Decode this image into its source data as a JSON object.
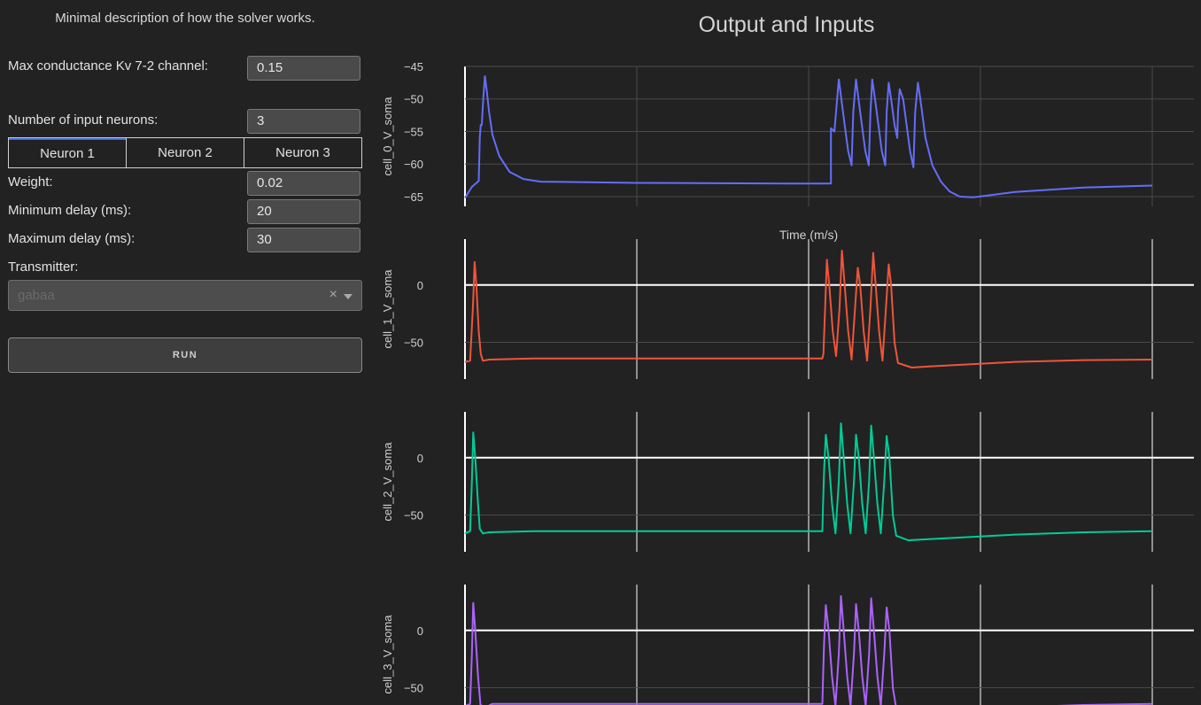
{
  "panel": {
    "description": "Minimal description of how the solver works.",
    "kv_label": "Max conductance Kv 7-2 channel:",
    "kv_value": "0.15",
    "num_label": "Number of input neurons:",
    "num_value": "3",
    "tabs": [
      "Neuron 1",
      "Neuron 2",
      "Neuron 3"
    ],
    "weight_label": "Weight:",
    "weight_value": "0.02",
    "min_delay_label": "Minimum delay (ms):",
    "min_delay_value": "20",
    "max_delay_label": "Maximum delay (ms):",
    "max_delay_value": "30",
    "transmitter_label": "Transmitter:",
    "transmitter_value": "gabaa",
    "run_label": "RUN"
  },
  "chart_data": {
    "type": "line",
    "title": "Output and Inputs",
    "xlabel": "Time (m/s)",
    "xlim": [
      0,
      200
    ],
    "x_gridlines": [
      0,
      50,
      100,
      150,
      200
    ],
    "colors": [
      "#636efa",
      "#ef553b",
      "#00cc96",
      "#ab63fa"
    ],
    "series": [
      {
        "name": "cell_0_V_soma",
        "ylim": [
          -66.5,
          -45
        ],
        "yticks": [
          -45,
          -50,
          -55,
          -60,
          -65
        ],
        "points": [
          [
            0,
            -65.2
          ],
          [
            2,
            -63.5
          ],
          [
            4,
            -62.6
          ],
          [
            4.3,
            -56
          ],
          [
            4.6,
            -54
          ],
          [
            4.9,
            -54
          ],
          [
            5.3,
            -50
          ],
          [
            5.8,
            -46.5
          ],
          [
            6.3,
            -48.5
          ],
          [
            7,
            -52
          ],
          [
            8,
            -55.5
          ],
          [
            10,
            -58.8
          ],
          [
            13,
            -61.2
          ],
          [
            17,
            -62.3
          ],
          [
            22,
            -62.7
          ],
          [
            50,
            -62.9
          ],
          [
            100,
            -63
          ],
          [
            106.5,
            -63
          ],
          [
            106.5,
            -54.5
          ],
          [
            107.5,
            -55
          ],
          [
            108.3,
            -50
          ],
          [
            108.8,
            -47
          ],
          [
            109.5,
            -50
          ],
          [
            110.5,
            -54
          ],
          [
            111.5,
            -58
          ],
          [
            112.5,
            -60.2
          ],
          [
            113,
            -52
          ],
          [
            113.8,
            -47
          ],
          [
            114.5,
            -50
          ],
          [
            115.5,
            -54
          ],
          [
            116.5,
            -58
          ],
          [
            117.5,
            -60.2
          ],
          [
            118,
            -52
          ],
          [
            118.5,
            -47
          ],
          [
            119.3,
            -50
          ],
          [
            120.3,
            -54
          ],
          [
            121.3,
            -58
          ],
          [
            122.3,
            -60.2
          ],
          [
            122.7,
            -52
          ],
          [
            123.3,
            -47.5
          ],
          [
            124,
            -50
          ],
          [
            125,
            -54
          ],
          [
            125.8,
            -56
          ],
          [
            126,
            -52
          ],
          [
            126.5,
            -48.5
          ],
          [
            127.5,
            -50
          ],
          [
            128.5,
            -54
          ],
          [
            129.5,
            -58
          ],
          [
            130.5,
            -60.5
          ],
          [
            131,
            -52
          ],
          [
            131.8,
            -47.5
          ],
          [
            132.5,
            -50
          ],
          [
            134,
            -56
          ],
          [
            136,
            -60.2
          ],
          [
            138.5,
            -62.7
          ],
          [
            141,
            -64.2
          ],
          [
            144,
            -65
          ],
          [
            148,
            -65.1
          ],
          [
            160,
            -64.3
          ],
          [
            180,
            -63.6
          ],
          [
            200,
            -63.3
          ]
        ]
      },
      {
        "name": "cell_1_V_soma",
        "ylim": [
          -82,
          40
        ],
        "yticks": [
          0,
          -50
        ],
        "points": [
          [
            0,
            -67
          ],
          [
            1.5,
            -66
          ],
          [
            2.3,
            -20
          ],
          [
            2.8,
            20
          ],
          [
            3.3,
            0
          ],
          [
            4,
            -40
          ],
          [
            4.6,
            -60
          ],
          [
            5.2,
            -66
          ],
          [
            7,
            -65
          ],
          [
            20,
            -64
          ],
          [
            60,
            -64
          ],
          [
            104,
            -64
          ],
          [
            104.3,
            -60
          ],
          [
            104.8,
            -20
          ],
          [
            105.3,
            22
          ],
          [
            106,
            0
          ],
          [
            107,
            -40
          ],
          [
            108,
            -62
          ],
          [
            109,
            -20
          ],
          [
            109.7,
            30
          ],
          [
            110.5,
            0
          ],
          [
            111.5,
            -40
          ],
          [
            112.5,
            -65
          ],
          [
            113.5,
            -20
          ],
          [
            114.3,
            15
          ],
          [
            115,
            0
          ],
          [
            116,
            -40
          ],
          [
            117,
            -66
          ],
          [
            118,
            -20
          ],
          [
            118.8,
            28
          ],
          [
            119.5,
            0
          ],
          [
            120.5,
            -40
          ],
          [
            121.5,
            -66
          ],
          [
            122.5,
            -20
          ],
          [
            123.3,
            18
          ],
          [
            124,
            0
          ],
          [
            125,
            -50
          ],
          [
            126,
            -68
          ],
          [
            130,
            -72
          ],
          [
            135,
            -71
          ],
          [
            160,
            -67
          ],
          [
            180,
            -65.5
          ],
          [
            200,
            -65
          ]
        ]
      },
      {
        "name": "cell_2_V_soma",
        "ylim": [
          -82,
          40
        ],
        "yticks": [
          0,
          -50
        ],
        "points": [
          [
            0,
            -66
          ],
          [
            1.5,
            -64
          ],
          [
            2,
            -20
          ],
          [
            2.4,
            22
          ],
          [
            3,
            0
          ],
          [
            3.8,
            -40
          ],
          [
            4.3,
            -62
          ],
          [
            5.2,
            -66
          ],
          [
            7,
            -65
          ],
          [
            20,
            -64
          ],
          [
            60,
            -64
          ],
          [
            104,
            -64
          ],
          [
            104.2,
            -40
          ],
          [
            104.5,
            -10
          ],
          [
            105,
            20
          ],
          [
            105.8,
            0
          ],
          [
            106.8,
            -40
          ],
          [
            107.8,
            -66
          ],
          [
            108.8,
            -20
          ],
          [
            109.4,
            30
          ],
          [
            110.2,
            0
          ],
          [
            111.2,
            -40
          ],
          [
            112.2,
            -66
          ],
          [
            113.2,
            -20
          ],
          [
            113.8,
            20
          ],
          [
            114.6,
            0
          ],
          [
            115.6,
            -40
          ],
          [
            116.6,
            -66
          ],
          [
            117.6,
            -20
          ],
          [
            118.2,
            28
          ],
          [
            119,
            0
          ],
          [
            120,
            -40
          ],
          [
            121,
            -66
          ],
          [
            122,
            -20
          ],
          [
            122.7,
            19
          ],
          [
            123.5,
            0
          ],
          [
            124.5,
            -50
          ],
          [
            125.5,
            -68
          ],
          [
            129,
            -72
          ],
          [
            135,
            -71
          ],
          [
            160,
            -67
          ],
          [
            180,
            -65
          ],
          [
            200,
            -64
          ]
        ]
      },
      {
        "name": "cell_3_V_soma",
        "ylim": [
          -82,
          40
        ],
        "yticks": [
          0,
          -50
        ],
        "points": [
          [
            0,
            -66
          ],
          [
            1.5,
            -64
          ],
          [
            2,
            -20
          ],
          [
            2.4,
            24
          ],
          [
            3,
            0
          ],
          [
            3.8,
            -40
          ],
          [
            4.5,
            -65
          ],
          [
            6,
            -67
          ],
          [
            8,
            -64
          ],
          [
            20,
            -64
          ],
          [
            60,
            -64
          ],
          [
            104,
            -64
          ],
          [
            104.2,
            -40
          ],
          [
            104.5,
            -10
          ],
          [
            105,
            22
          ],
          [
            105.8,
            0
          ],
          [
            106.8,
            -40
          ],
          [
            107.8,
            -66
          ],
          [
            108.8,
            -20
          ],
          [
            109.4,
            30
          ],
          [
            110.2,
            0
          ],
          [
            111.2,
            -40
          ],
          [
            112.2,
            -66
          ],
          [
            113.2,
            -20
          ],
          [
            113.8,
            23
          ],
          [
            114.6,
            0
          ],
          [
            115.6,
            -40
          ],
          [
            116.6,
            -66
          ],
          [
            117.6,
            -20
          ],
          [
            118.2,
            28
          ],
          [
            119,
            0
          ],
          [
            120,
            -40
          ],
          [
            121,
            -66
          ],
          [
            122,
            -20
          ],
          [
            122.7,
            20
          ],
          [
            123.5,
            0
          ],
          [
            124.5,
            -50
          ],
          [
            125.5,
            -68
          ],
          [
            129,
            -72
          ],
          [
            135,
            -71
          ],
          [
            160,
            -67
          ],
          [
            180,
            -65
          ],
          [
            200,
            -64
          ]
        ]
      }
    ]
  }
}
